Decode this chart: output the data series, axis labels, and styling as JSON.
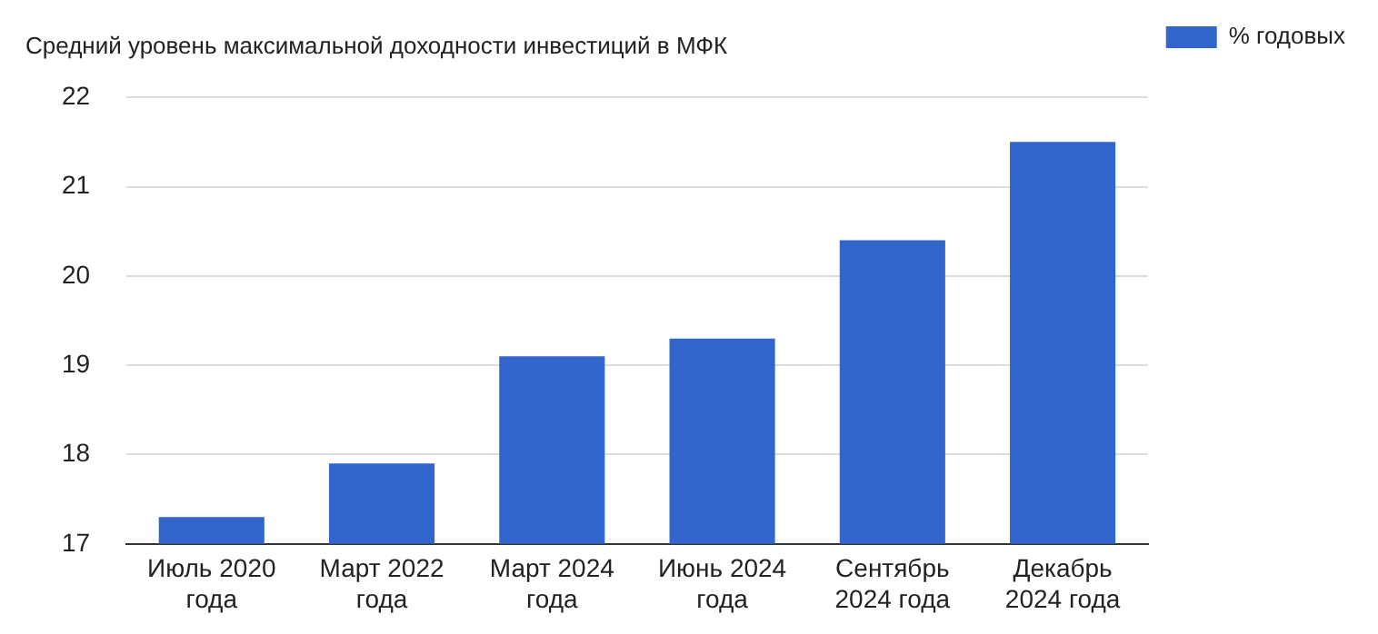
{
  "chart_data": {
    "type": "bar",
    "title": "Средний уровень максимальной доходности инвестиций в МФК",
    "categories": [
      "Июль 2020 года",
      "Март 2022 года",
      "Март 2024 года",
      "Июнь 2024 года",
      "Сентябрь 2024 года",
      "Декабрь 2024 года"
    ],
    "series": [
      {
        "name": "% годовых",
        "color": "#3366cc",
        "values": [
          17.3,
          17.9,
          19.1,
          19.3,
          20.4,
          21.5
        ]
      }
    ],
    "ylim": [
      17,
      22
    ],
    "yticks": [
      17,
      18,
      19,
      20,
      21,
      22
    ],
    "grid": "y",
    "legend": "top right"
  }
}
